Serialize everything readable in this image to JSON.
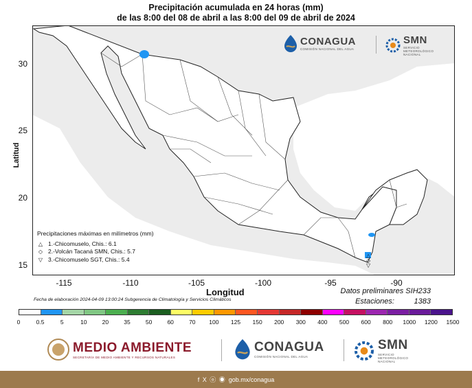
{
  "title": {
    "line1": "Precipitación acumulada en 24 horas (mm)",
    "line2": "de las 8:00 del 08 de abril a las 8:00 del 09 de abril de 2024"
  },
  "top_logos": {
    "conagua": "CONAGUA",
    "conagua_sub": "COMISIÓN NACIONAL DEL AGUA",
    "smn": "SMN",
    "smn_sub": "SERVICIO METEOROLÓGICO NACIONAL"
  },
  "axes": {
    "ylabel": "Latitud",
    "xlabel": "Longitud",
    "yticks": [
      "30",
      "25",
      "20",
      "15"
    ],
    "xticks": [
      "-115",
      "-110",
      "-105",
      "-100",
      "-95",
      "-90"
    ]
  },
  "maxima": {
    "title": "Precipitaciones máximas en milímetros (mm)",
    "items": [
      {
        "symbol": "△",
        "text": "1.-Chicomuselo, Chis.: 6.1"
      },
      {
        "symbol": "◇",
        "text": "2.-Volcán Tacaná SMN, Chis.: 5.7"
      },
      {
        "symbol": "▽",
        "text": "3.-Chicomuselo SGT, Chis.: 5.4"
      }
    ]
  },
  "datos": {
    "line1": "Datos preliminares SIH233",
    "stations_label": "Estaciones:",
    "stations_value": "1383"
  },
  "fecha": "Fecha de elaboración 2024-04-09 13:00:24 Subgerencia de Climatología y Servicios Climáticos",
  "scale": {
    "labels": [
      "0",
      "0.5",
      "5",
      "10",
      "20",
      "35",
      "50",
      "60",
      "70",
      "100",
      "125",
      "150",
      "200",
      "300",
      "400",
      "500",
      "600",
      "800",
      "1000",
      "1200",
      "1500"
    ],
    "colors": [
      "#ffffff",
      "#2196f3",
      "#a5d6a7",
      "#81c784",
      "#4caf50",
      "#2e7d32",
      "#1b5e20",
      "#ffff66",
      "#ffcc00",
      "#ff9800",
      "#ff5722",
      "#e53935",
      "#c62828",
      "#8e0000",
      "#ff00ff",
      "#c51162",
      "#9c27b0",
      "#7b1fa2",
      "#6a1b9a",
      "#4a148c"
    ]
  },
  "bottom_logos": {
    "medio_ambiente": "MEDIO AMBIENTE",
    "medio_ambiente_sub": "SECRETARÍA DE MEDIO AMBIENTE Y RECURSOS NATURALES",
    "conagua": "CONAGUA",
    "conagua_sub": "COMISIÓN NACIONAL DEL AGUA",
    "smn": "SMN",
    "smn_sub": "SERVICIO METEOROLÓGICO NACIONAL"
  },
  "footer": {
    "social": "f X ⓞ ◉",
    "url": "gob.mx/conagua"
  },
  "colors": {
    "land": "#ffffff",
    "outside": "#ececec",
    "precip": "#2196f3",
    "footer": "#9c7a4d",
    "brand_red": "#8b1a2b",
    "brand_blue": "#1d5fa8"
  }
}
